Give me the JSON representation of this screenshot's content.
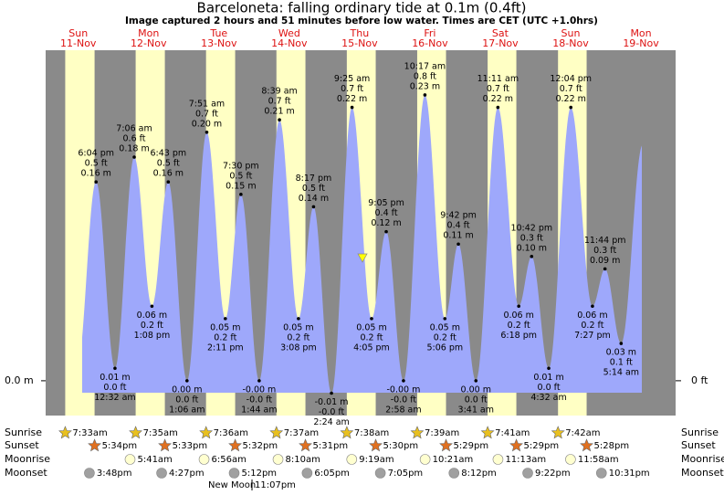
{
  "chart_data": {
    "type": "tide",
    "title": "Barceloneta: falling  ordinary tide at 0.1m (0.4ft)",
    "subtitle": "Image captured 2 hours and 51 minutes before low water. Times are CET (UTC +1.0hrs)",
    "days": [
      "Sun",
      "Mon",
      "Tue",
      "Wed",
      "Thu",
      "Fri",
      "Sat",
      "Sun",
      "Mon"
    ],
    "dates": [
      "11-Nov",
      "12-Nov",
      "13-Nov",
      "14-Nov",
      "15-Nov",
      "16-Nov",
      "17-Nov",
      "18-Nov",
      "19-Nov"
    ],
    "ylim": [
      -0.028,
      0.266
    ],
    "yticks": [
      {
        "value": 0,
        "label": "0.0 m"
      }
    ],
    "y2lim": [
      -0.0919,
      0.8727
    ],
    "y2ticks": [
      {
        "value": 0,
        "label": "0 ft"
      }
    ],
    "colors": {
      "background": "#8a8a8a",
      "daylight": "#ffffc4",
      "water": "#9ea8fb",
      "day_label": "#dd1111"
    },
    "extremes": {
      "x": [
        "11-Nov 18:04",
        "12-Nov 00:32",
        "12-Nov 07:06",
        "12-Nov 13:08",
        "12-Nov 18:43",
        "13-Nov 01:06",
        "13-Nov 07:51",
        "13-Nov 14:11",
        "13-Nov 19:30",
        "14-Nov 01:44",
        "14-Nov 08:39",
        "14-Nov 15:08",
        "14-Nov 20:17",
        "15-Nov 02:24",
        "15-Nov 09:25",
        "15-Nov 16:05",
        "15-Nov 21:05",
        "16-Nov 02:58",
        "16-Nov 10:17",
        "16-Nov 17:06",
        "16-Nov 21:42",
        "17-Nov 03:41",
        "17-Nov 11:11",
        "17-Nov 18:18",
        "17-Nov 22:42",
        "18-Nov 04:32",
        "18-Nov 12:04",
        "18-Nov 19:27",
        "18-Nov 23:44",
        "19-Nov 05:14"
      ],
      "times": [
        "6:04 pm",
        "12:32 am",
        "7:06 am",
        "1:08 pm",
        "6:43 pm",
        "1:06 am",
        "7:51 am",
        "2:11 pm",
        "7:30 pm",
        "1:44 am",
        "8:39 am",
        "3:08 pm",
        "8:17 pm",
        "2:24 am",
        "9:25 am",
        "4:05 pm",
        "9:05 pm",
        "2:58 am",
        "10:17 am",
        "5:06 pm",
        "9:42 pm",
        "3:41 am",
        "11:11 am",
        "6:18 pm",
        "10:42 pm",
        "4:32 am",
        "12:04 pm",
        "7:27 pm",
        "11:44 pm",
        "5:14 am"
      ],
      "values": [
        0.16,
        0.01,
        0.18,
        0.06,
        0.16,
        0.0,
        0.2,
        0.05,
        0.15,
        0,
        0.21,
        0.05,
        0.14,
        -0.01,
        0.22,
        0.05,
        0.12,
        0,
        0.23,
        0.05,
        0.11,
        0.0,
        0.22,
        0.06,
        0.1,
        0.01,
        0.22,
        0.06,
        0.09,
        0.03
      ],
      "value_labels": [
        "0.16 m",
        "0.01 m",
        "0.18 m",
        "0.06 m",
        "0.16 m",
        "0.00 m",
        "0.20 m",
        "0.05 m",
        "0.15 m",
        "-0.00 m",
        "0.21 m",
        "0.05 m",
        "0.14 m",
        "-0.01 m",
        "0.22 m",
        "0.05 m",
        "0.12 m",
        "-0.00 m",
        "0.23 m",
        "0.05 m",
        "0.11 m",
        "0.00 m",
        "0.22 m",
        "0.06 m",
        "0.10 m",
        "0.01 m",
        "0.22 m",
        "0.06 m",
        "0.09 m",
        "0.03 m"
      ],
      "ft_labels": [
        "0.5 ft",
        "0.0 ft",
        "0.6 ft",
        "0.2 ft",
        "0.5 ft",
        "0.0 ft",
        "0.7 ft",
        "0.2 ft",
        "0.5 ft",
        "-0.0 ft",
        "0.7 ft",
        "0.2 ft",
        "0.5 ft",
        "-0.0 ft",
        "0.7 ft",
        "0.2 ft",
        "0.4 ft",
        "-0.0 ft",
        "0.8 ft",
        "0.2 ft",
        "0.4 ft",
        "0.0 ft",
        "0.7 ft",
        "0.2 ft",
        "0.3 ft",
        "0.0 ft",
        "0.7 ft",
        "0.2 ft",
        "0.3 ft",
        "0.1 ft"
      ]
    },
    "sunrise": {
      "label": "Sunrise",
      "color": "#e8c020",
      "x": [
        "11-Nov 07:33",
        "12-Nov 07:35",
        "13-Nov 07:36",
        "14-Nov 07:37",
        "15-Nov 07:38",
        "16-Nov 07:39",
        "17-Nov 07:41",
        "18-Nov 07:42"
      ],
      "times": [
        "7:33am",
        "7:35am",
        "7:36am",
        "7:37am",
        "7:38am",
        "7:39am",
        "7:41am",
        "7:42am"
      ]
    },
    "sunset": {
      "label": "Sunset",
      "color": "#e07020",
      "x": [
        "11-Nov 17:34",
        "12-Nov 17:33",
        "13-Nov 17:32",
        "14-Nov 17:31",
        "15-Nov 17:30",
        "16-Nov 17:29",
        "17-Nov 17:29",
        "18-Nov 17:28"
      ],
      "times": [
        "5:34pm",
        "5:33pm",
        "5:32pm",
        "5:31pm",
        "5:30pm",
        "5:29pm",
        "5:29pm",
        "5:28pm"
      ]
    },
    "moonrise": {
      "label": "Moonrise",
      "color": "#ffffd0",
      "x": [
        "12-Nov 05:41",
        "13-Nov 06:56",
        "14-Nov 08:10",
        "15-Nov 09:19",
        "16-Nov 10:21",
        "17-Nov 11:13",
        "18-Nov 11:58"
      ],
      "times": [
        "5:41am",
        "6:56am",
        "8:10am",
        "9:19am",
        "10:21am",
        "11:13am",
        "11:58am"
      ]
    },
    "moonset": {
      "label": "Moonset",
      "color": "#a0a0a0",
      "x": [
        "11-Nov 15:48",
        "12-Nov 16:27",
        "13-Nov 17:12",
        "14-Nov 18:05",
        "15-Nov 19:05",
        "16-Nov 20:12",
        "17-Nov 21:22",
        "18-Nov 22:31"
      ],
      "times": [
        "3:48pm",
        "4:27pm",
        "5:12pm",
        "6:05pm",
        "7:05pm",
        "8:12pm",
        "9:22pm",
        "10:31pm"
      ]
    },
    "moon_phase": {
      "label": "New Moon",
      "time": "11:07pm"
    }
  }
}
